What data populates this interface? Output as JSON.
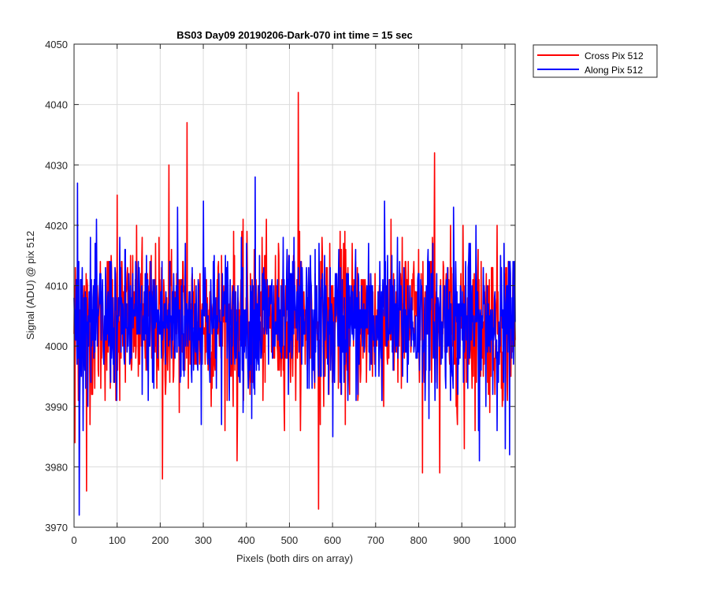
{
  "chart_data": {
    "type": "line",
    "title": "BS03 Day09 20190206-Dark-070 int time = 15 sec",
    "xlabel": "Pixels (both dirs on array)",
    "ylabel": "Signal (ADU) @ pix 512",
    "xlim": [
      0,
      1024
    ],
    "ylim": [
      3970,
      4050
    ],
    "xticks": [
      0,
      100,
      200,
      300,
      400,
      500,
      600,
      700,
      800,
      900,
      1000
    ],
    "yticks": [
      3970,
      3980,
      3990,
      4000,
      4010,
      4020,
      4030,
      4040,
      4050
    ],
    "grid": true,
    "legend_position": "outside-top-right",
    "n_points": 1024,
    "series": [
      {
        "name": "Cross Pix 512",
        "color": "#ff0000",
        "mean": 4004,
        "std": 6.5,
        "points": [
          {
            "x": 2,
            "y": 3984
          },
          {
            "x": 29,
            "y": 3976
          },
          {
            "x": 100,
            "y": 4025
          },
          {
            "x": 205,
            "y": 3978
          },
          {
            "x": 220,
            "y": 4030
          },
          {
            "x": 262,
            "y": 4037
          },
          {
            "x": 378,
            "y": 3981
          },
          {
            "x": 520,
            "y": 4042
          },
          {
            "x": 567,
            "y": 3973
          },
          {
            "x": 836,
            "y": 4032
          },
          {
            "x": 848,
            "y": 3979
          },
          {
            "x": 808,
            "y": 3979
          },
          {
            "x": 905,
            "y": 3983
          },
          {
            "x": 993,
            "y": 3990
          },
          {
            "x": 1020,
            "y": 4010
          }
        ]
      },
      {
        "name": "Along Pix 512",
        "color": "#0000ff",
        "mean": 4004,
        "std": 6.0,
        "points": [
          {
            "x": 8,
            "y": 4027
          },
          {
            "x": 12,
            "y": 3972
          },
          {
            "x": 240,
            "y": 4023
          },
          {
            "x": 300,
            "y": 4024
          },
          {
            "x": 420,
            "y": 4028
          },
          {
            "x": 600,
            "y": 3985
          },
          {
            "x": 720,
            "y": 4024
          },
          {
            "x": 880,
            "y": 4023
          },
          {
            "x": 940,
            "y": 3981
          },
          {
            "x": 1000,
            "y": 3983
          },
          {
            "x": 1010,
            "y": 3982
          }
        ]
      }
    ]
  }
}
